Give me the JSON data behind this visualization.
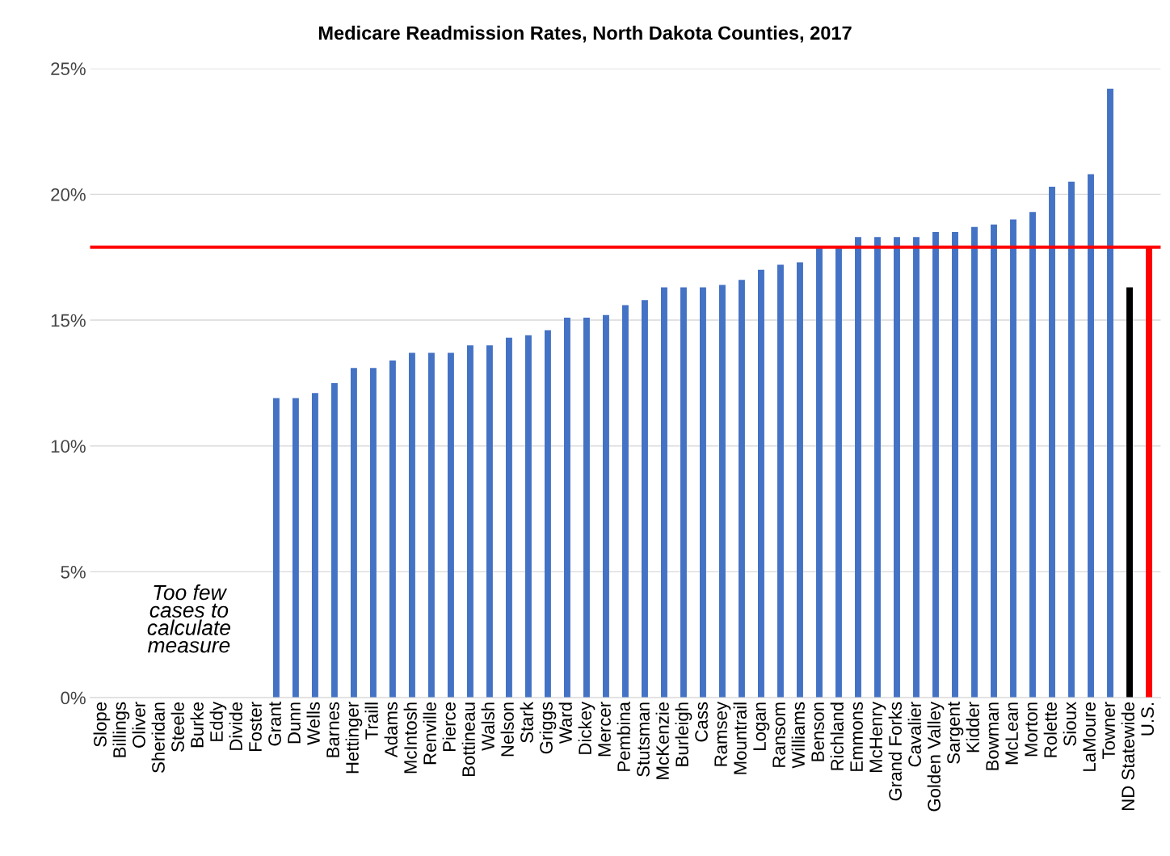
{
  "chart_data": {
    "type": "bar",
    "title": "Medicare Readmission Rates, North Dakota Counties, 2017",
    "categories": [
      "Slope",
      "Billings",
      "Oliver",
      "Sheridan",
      "Steele",
      "Burke",
      "Eddy",
      "Divide",
      "Foster",
      "Grant",
      "Dunn",
      "Wells",
      "Barnes",
      "Hettinger",
      "Traill",
      "Adams",
      "McIntosh",
      "Renville",
      "Pierce",
      "Bottineau",
      "Walsh",
      "Nelson",
      "Stark",
      "Griggs",
      "Ward",
      "Dickey",
      "Mercer",
      "Pembina",
      "Stutsman",
      "McKenzie",
      "Burleigh",
      "Cass",
      "Ramsey",
      "Mountrail",
      "Logan",
      "Ransom",
      "Williams",
      "Benson",
      "Richland",
      "Emmons",
      "McHenry",
      "Grand Forks",
      "Cavalier",
      "Golden Valley",
      "Sargent",
      "Kidder",
      "Bowman",
      "McLean",
      "Morton",
      "Rolette",
      "Sioux",
      "LaMoure",
      "Towner",
      "ND Statewide",
      "U.S."
    ],
    "values": [
      null,
      null,
      null,
      null,
      null,
      null,
      null,
      null,
      null,
      11.9,
      11.9,
      12.1,
      12.5,
      13.1,
      13.1,
      13.4,
      13.7,
      13.7,
      13.7,
      14.0,
      14.0,
      14.3,
      14.4,
      14.6,
      15.1,
      15.1,
      15.2,
      15.6,
      15.8,
      16.3,
      16.3,
      16.3,
      16.4,
      16.6,
      17.0,
      17.2,
      17.3,
      17.9,
      17.9,
      18.3,
      18.3,
      18.3,
      18.3,
      18.5,
      18.5,
      18.7,
      18.8,
      19.0,
      19.3,
      20.3,
      20.5,
      20.8,
      24.2,
      16.3,
      17.9
    ],
    "colors": [
      "#4472c4",
      "#4472c4",
      "#4472c4",
      "#4472c4",
      "#4472c4",
      "#4472c4",
      "#4472c4",
      "#4472c4",
      "#4472c4",
      "#4472c4",
      "#4472c4",
      "#4472c4",
      "#4472c4",
      "#4472c4",
      "#4472c4",
      "#4472c4",
      "#4472c4",
      "#4472c4",
      "#4472c4",
      "#4472c4",
      "#4472c4",
      "#4472c4",
      "#4472c4",
      "#4472c4",
      "#4472c4",
      "#4472c4",
      "#4472c4",
      "#4472c4",
      "#4472c4",
      "#4472c4",
      "#4472c4",
      "#4472c4",
      "#4472c4",
      "#4472c4",
      "#4472c4",
      "#4472c4",
      "#4472c4",
      "#4472c4",
      "#4472c4",
      "#4472c4",
      "#4472c4",
      "#4472c4",
      "#4472c4",
      "#4472c4",
      "#4472c4",
      "#4472c4",
      "#4472c4",
      "#4472c4",
      "#4472c4",
      "#4472c4",
      "#4472c4",
      "#4472c4",
      "#4472c4",
      "#000000",
      "#ff0000"
    ],
    "ylim": [
      0,
      25
    ],
    "yticks": [
      {
        "value": 0,
        "label": "0%"
      },
      {
        "value": 5,
        "label": "5%"
      },
      {
        "value": 10,
        "label": "10%"
      },
      {
        "value": 15,
        "label": "15%"
      },
      {
        "value": 20,
        "label": "20%"
      },
      {
        "value": 25,
        "label": "25%"
      }
    ],
    "grid": "y",
    "ref_lines": [
      {
        "axis": "y",
        "value": 17.9,
        "color": "#ff0000"
      }
    ],
    "annotations": [
      "Too few\ncases to\ncalculate\nmeasure"
    ]
  }
}
